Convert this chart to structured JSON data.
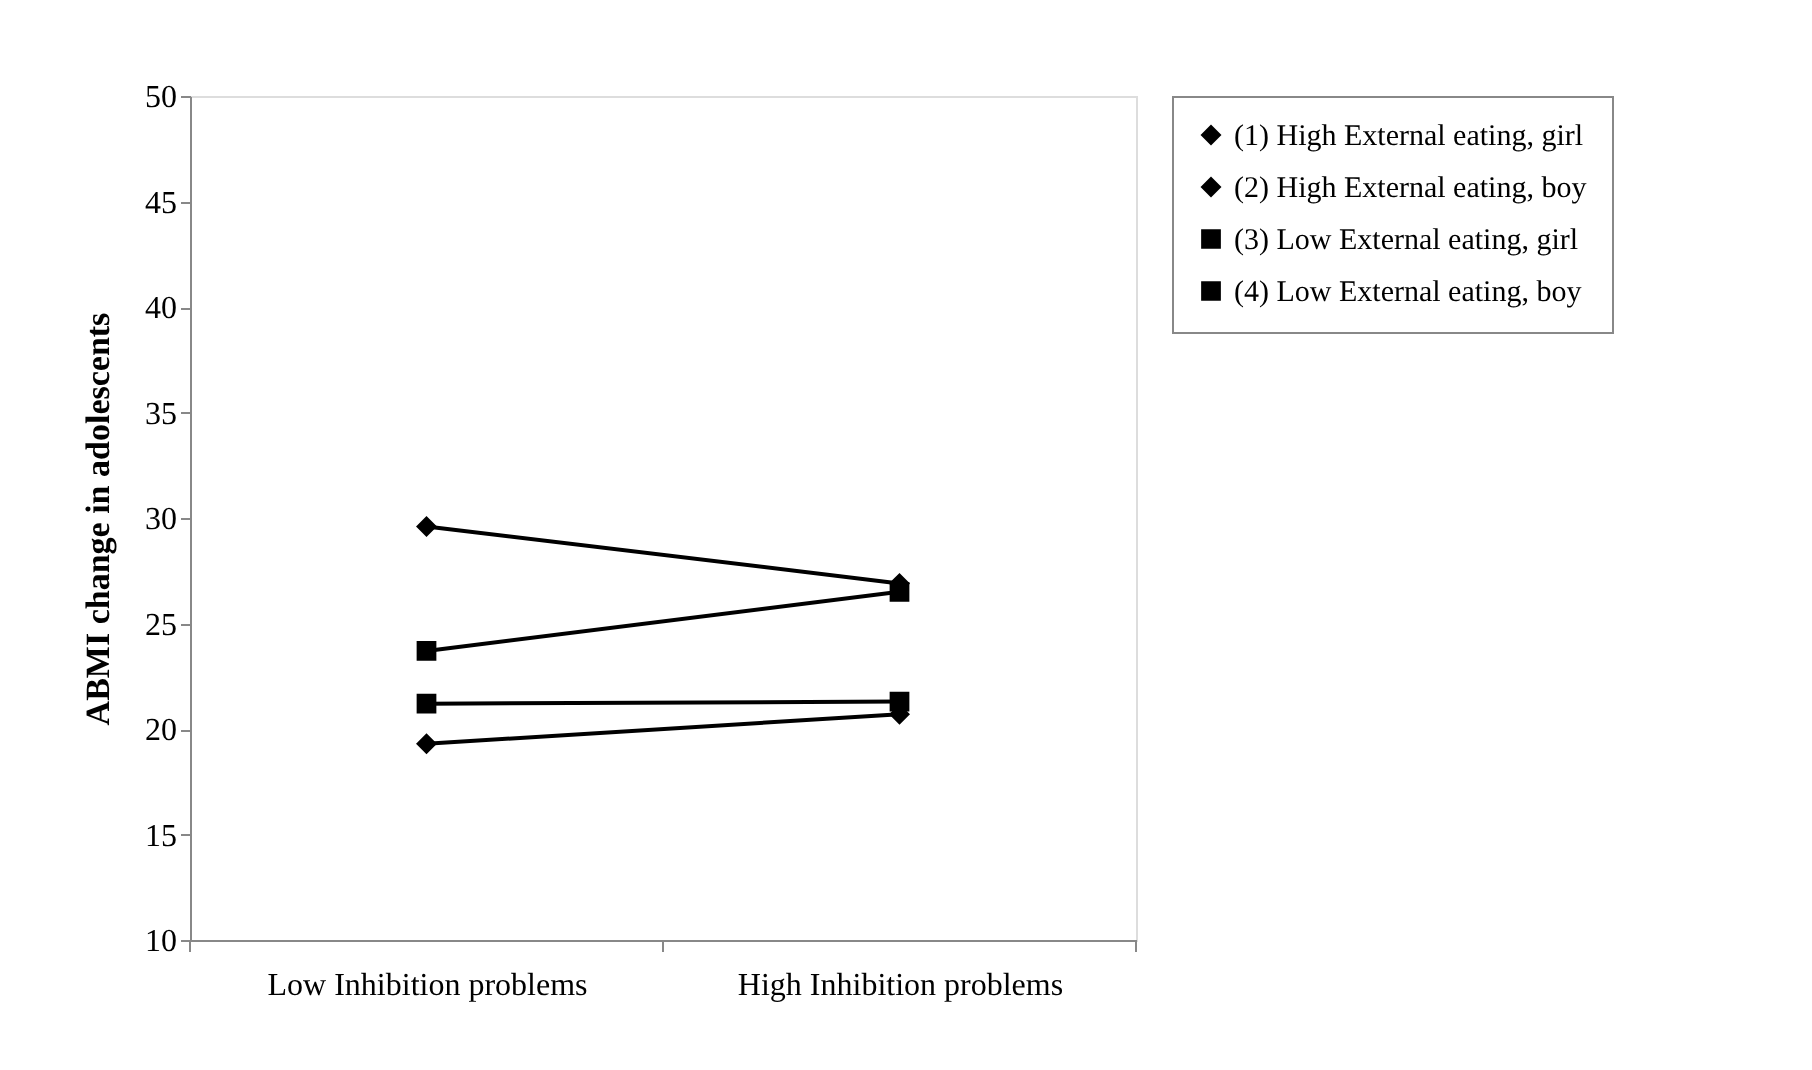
{
  "chart_data": {
    "type": "line",
    "ylabel": "ABMI change  in adolescents",
    "categories": [
      "Low Inhibition problems",
      "High Inhibition problems"
    ],
    "series": [
      {
        "name": "(1) High External eating, girl",
        "color": "#000000",
        "marker": "diamond",
        "values": [
          19.3,
          20.7
        ]
      },
      {
        "name": "(2) High External eating, boy",
        "color": "#000000",
        "marker": "diamond",
        "values": [
          29.6,
          26.9
        ]
      },
      {
        "name": "(3) Low External eating, girl",
        "color": "#000000",
        "marker": "square",
        "values": [
          21.2,
          21.3
        ]
      },
      {
        "name": "(4) Low External eating, boy",
        "color": "#000000",
        "marker": "square",
        "values": [
          23.7,
          26.5
        ]
      }
    ],
    "ylim": [
      10,
      50
    ],
    "yticks": [
      10,
      15,
      20,
      25,
      30,
      35,
      40,
      45,
      50
    ],
    "grid": false,
    "legend": "right",
    "line_style": "solid"
  }
}
